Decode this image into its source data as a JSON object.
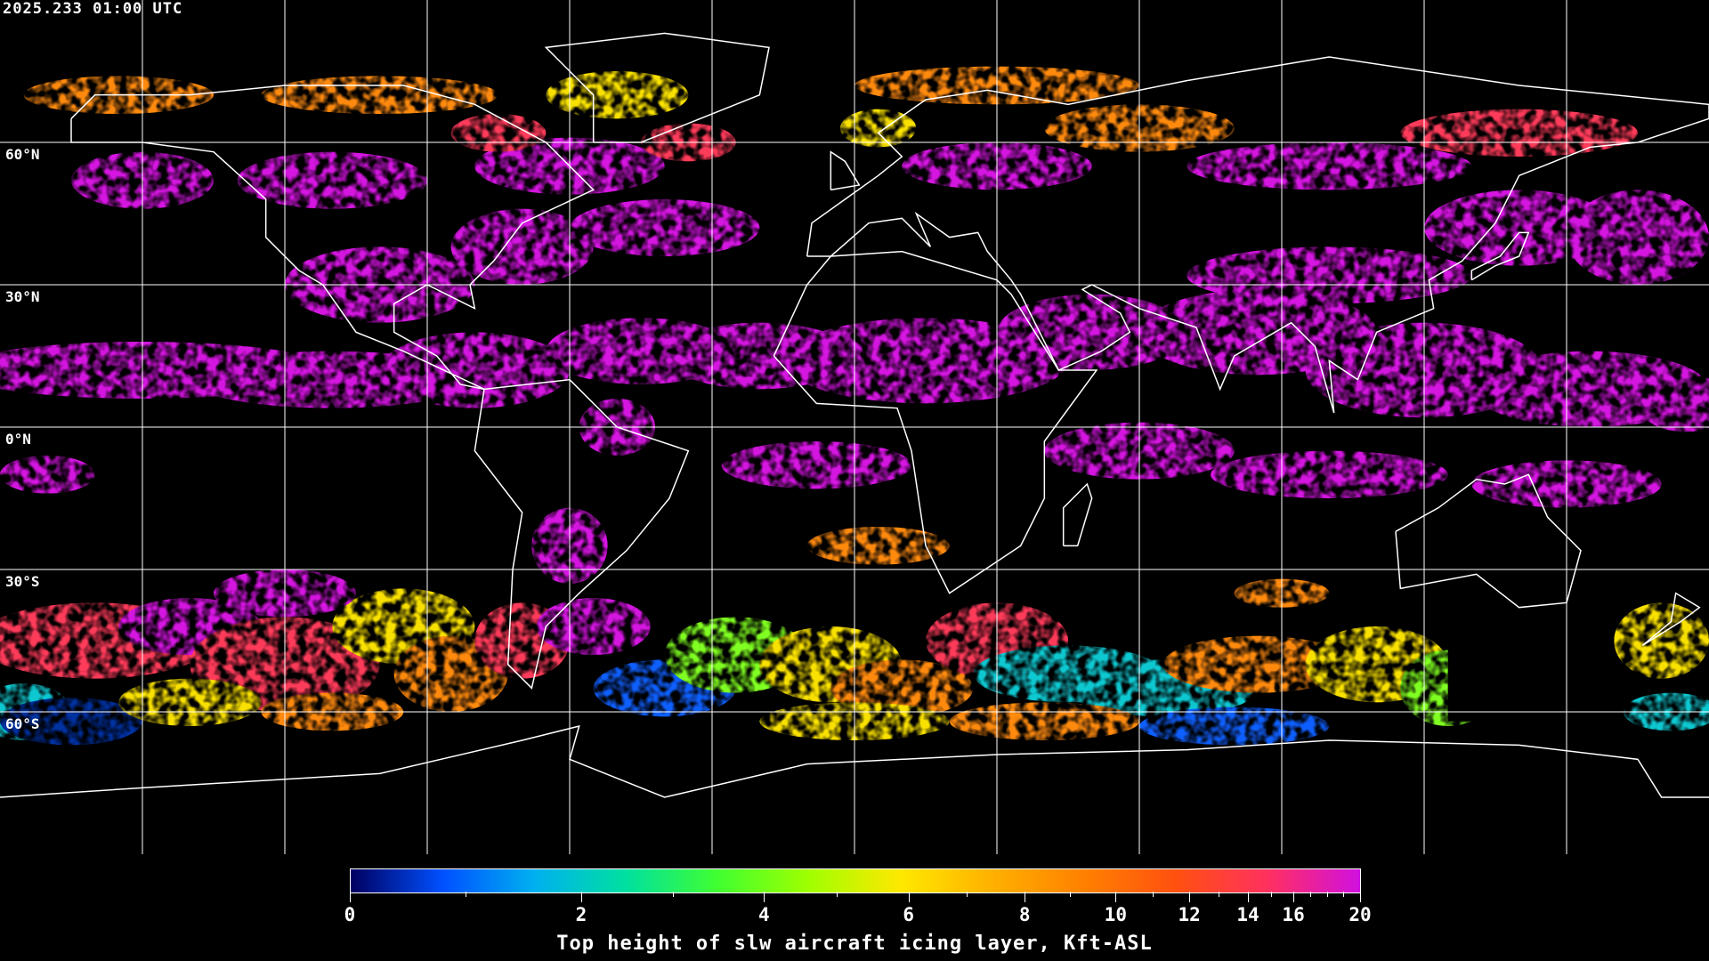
{
  "header": {
    "timestamp": "2025.233 01:00 UTC"
  },
  "map": {
    "projection": "equirectangular",
    "lat_labels": [
      "60°N",
      "30°N",
      "0°N",
      "30°S",
      "60°S"
    ],
    "grid_spacing_deg": 30,
    "grid_color": "#ffffff",
    "coastline_color": "#ffffff",
    "background_color": "#000000"
  },
  "colorbar": {
    "title": "Top height of slw aircraft icing layer, Kft-ASL",
    "major_ticks": [
      "0",
      "2",
      "4",
      "6",
      "8",
      "10",
      "12",
      "14",
      "16",
      "20"
    ],
    "minor_ticks": [
      1,
      3,
      5,
      7,
      9,
      11,
      13,
      15,
      17,
      18,
      19
    ],
    "range": [
      0,
      20
    ],
    "colors": [
      "#000060",
      "#0050ff",
      "#00b0f0",
      "#00e0a0",
      "#40ff30",
      "#a0ff00",
      "#ffe800",
      "#ffb000",
      "#ff8000",
      "#ff5010",
      "#ff3060",
      "#d010e0"
    ]
  }
}
